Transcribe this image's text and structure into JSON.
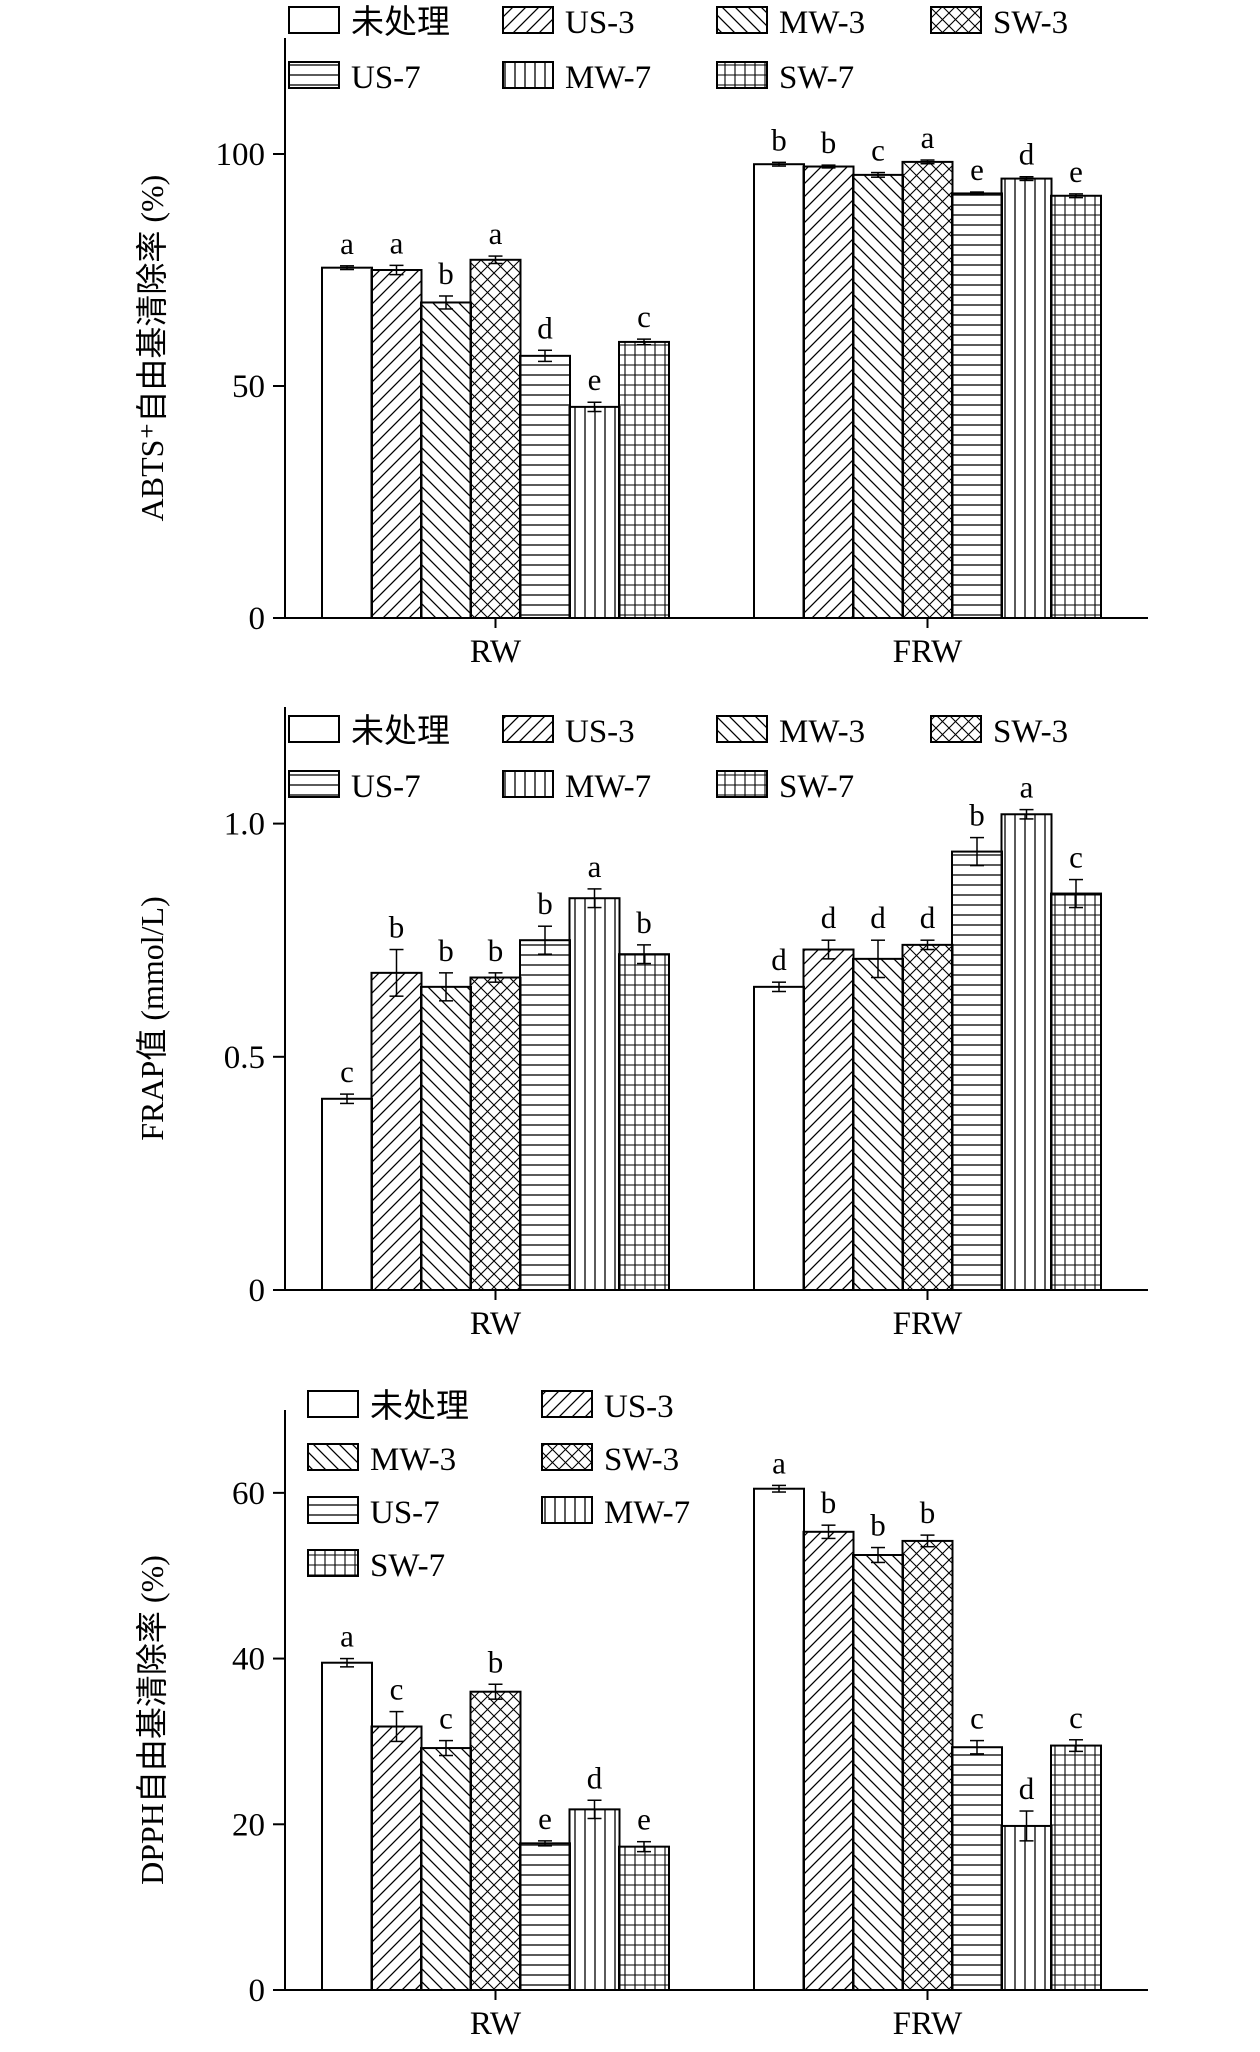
{
  "chart_data": [
    {
      "type": "bar",
      "ylabel": "ABTS⁺自由基清除率 (%)",
      "ylim": [
        0,
        125
      ],
      "yticks": [
        "0",
        "50",
        "100"
      ],
      "yticks_values": [
        0,
        50,
        100
      ],
      "categories": [
        "RW",
        "FRW"
      ],
      "series": [
        {
          "name": "未处理",
          "values": [
            75.5,
            97.8
          ],
          "errors": [
            0.4,
            0.4
          ],
          "labels": [
            "a",
            "b"
          ]
        },
        {
          "name": "US-3",
          "values": [
            75.0,
            97.3
          ],
          "errors": [
            1.0,
            0.3
          ],
          "labels": [
            "a",
            "b"
          ]
        },
        {
          "name": "MW-3",
          "values": [
            68.0,
            95.5
          ],
          "errors": [
            1.4,
            0.5
          ],
          "labels": [
            "b",
            "c"
          ]
        },
        {
          "name": "SW-3",
          "values": [
            77.2,
            98.3
          ],
          "errors": [
            0.8,
            0.4
          ],
          "labels": [
            "a",
            "a"
          ]
        },
        {
          "name": "US-7",
          "values": [
            56.5,
            91.5
          ],
          "errors": [
            1.2,
            0.3
          ],
          "labels": [
            "d",
            "e"
          ]
        },
        {
          "name": "MW-7",
          "values": [
            45.5,
            94.7
          ],
          "errors": [
            1.0,
            0.4
          ],
          "labels": [
            "e",
            "d"
          ]
        },
        {
          "name": "SW-7",
          "values": [
            59.5,
            91.0
          ],
          "errors": [
            0.6,
            0.4
          ],
          "labels": [
            "c",
            "e"
          ]
        }
      ],
      "legend": {
        "placement": "top",
        "columns": 4
      }
    },
    {
      "type": "bar",
      "ylabel": "FRAP值 (mmol/L)",
      "ylim": [
        0,
        1.25
      ],
      "yticks": [
        "0",
        "0.5",
        "1.0"
      ],
      "yticks_values": [
        0,
        0.5,
        1.0
      ],
      "categories": [
        "RW",
        "FRW"
      ],
      "series": [
        {
          "name": "未处理",
          "values": [
            0.41,
            0.65
          ],
          "errors": [
            0.01,
            0.01
          ],
          "labels": [
            "c",
            "d"
          ]
        },
        {
          "name": "US-3",
          "values": [
            0.68,
            0.73
          ],
          "errors": [
            0.05,
            0.02
          ],
          "labels": [
            "b",
            "d"
          ]
        },
        {
          "name": "MW-3",
          "values": [
            0.65,
            0.71
          ],
          "errors": [
            0.03,
            0.04
          ],
          "labels": [
            "b",
            "d"
          ]
        },
        {
          "name": "SW-3",
          "values": [
            0.67,
            0.74
          ],
          "errors": [
            0.01,
            0.01
          ],
          "labels": [
            "b",
            "d"
          ]
        },
        {
          "name": "US-7",
          "values": [
            0.75,
            0.94
          ],
          "errors": [
            0.03,
            0.03
          ],
          "labels": [
            "b",
            "b"
          ]
        },
        {
          "name": "MW-7",
          "values": [
            0.84,
            1.02
          ],
          "errors": [
            0.02,
            0.01
          ],
          "labels": [
            "a",
            "a"
          ]
        },
        {
          "name": "SW-7",
          "values": [
            0.72,
            0.85
          ],
          "errors": [
            0.02,
            0.03
          ],
          "labels": [
            "b",
            "c"
          ]
        }
      ],
      "legend": {
        "placement": "top",
        "columns": 4
      }
    },
    {
      "type": "bar",
      "ylabel": "DPPH自由基清除率 (%)",
      "ylim": [
        0,
        70
      ],
      "yticks": [
        "0",
        "20",
        "40",
        "60"
      ],
      "yticks_values": [
        0,
        20,
        40,
        60
      ],
      "categories": [
        "RW",
        "FRW"
      ],
      "series": [
        {
          "name": "未处理",
          "values": [
            39.5,
            60.5
          ],
          "errors": [
            0.5,
            0.4
          ],
          "labels": [
            "a",
            "a"
          ]
        },
        {
          "name": "US-3",
          "values": [
            31.8,
            55.3
          ],
          "errors": [
            1.8,
            0.8
          ],
          "labels": [
            "c",
            "b"
          ]
        },
        {
          "name": "MW-3",
          "values": [
            29.2,
            52.5
          ],
          "errors": [
            0.9,
            0.9
          ],
          "labels": [
            "c",
            "b"
          ]
        },
        {
          "name": "SW-3",
          "values": [
            36.0,
            54.2
          ],
          "errors": [
            0.9,
            0.7
          ],
          "labels": [
            "b",
            "b"
          ]
        },
        {
          "name": "US-7",
          "values": [
            17.7,
            29.3
          ],
          "errors": [
            0.3,
            0.8
          ],
          "labels": [
            "e",
            "c"
          ]
        },
        {
          "name": "MW-7",
          "values": [
            21.8,
            19.8
          ],
          "errors": [
            1.1,
            1.8
          ],
          "labels": [
            "d",
            "d"
          ]
        },
        {
          "name": "SW-7",
          "values": [
            17.3,
            29.5
          ],
          "errors": [
            0.6,
            0.7
          ],
          "labels": [
            "e",
            "c"
          ]
        }
      ],
      "legend": {
        "placement": "top-left",
        "columns": 2
      }
    }
  ],
  "patterns": {
    "未处理": "none",
    "US-3": "diag-up",
    "MW-3": "diag-down",
    "SW-3": "cross-hatch",
    "US-7": "horizontal",
    "MW-7": "vertical",
    "SW-7": "grid"
  },
  "colors": {
    "stroke": "#000000",
    "fill": "#ffffff"
  }
}
